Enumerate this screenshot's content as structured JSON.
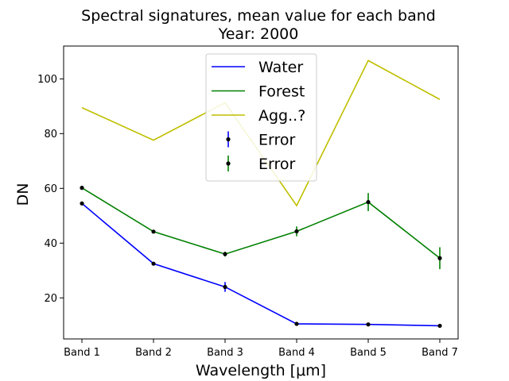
{
  "chart_data": {
    "type": "line",
    "title": "Spectral signatures, mean value for each band",
    "subtitle": "Year: 2000",
    "xlabel": "Wavelength [μm]",
    "ylabel": "DN",
    "categories": [
      "Band 1",
      "Band 2",
      "Band 3",
      "Band 4",
      "Band 5",
      "Band 7"
    ],
    "ylim": [
      5,
      112
    ],
    "yticks": [
      20,
      40,
      60,
      80,
      100
    ],
    "grid": false,
    "legend_position": "top-center",
    "series": [
      {
        "name": "Water",
        "color": "#0000ff",
        "values": [
          54.5,
          32.5,
          24.0,
          10.5,
          10.3,
          9.8
        ],
        "error": [
          0.6,
          0.4,
          1.8,
          0.4,
          0.4,
          0.4
        ]
      },
      {
        "name": "Forest",
        "color": "#008000",
        "values": [
          60.2,
          44.2,
          36.0,
          44.3,
          55.0,
          34.5
        ],
        "error": [
          0.7,
          0.5,
          0.9,
          1.8,
          3.3,
          4.0
        ]
      },
      {
        "name": "Agg..?",
        "color": "#bfbf00",
        "values": [
          89.5,
          77.6,
          91.3,
          53.7,
          106.7,
          92.5
        ]
      }
    ],
    "legend": [
      "Water",
      "Forest",
      "Agg..?",
      "Error",
      "Error"
    ],
    "error_legend_colors": [
      "#0000ff",
      "#008000"
    ]
  }
}
